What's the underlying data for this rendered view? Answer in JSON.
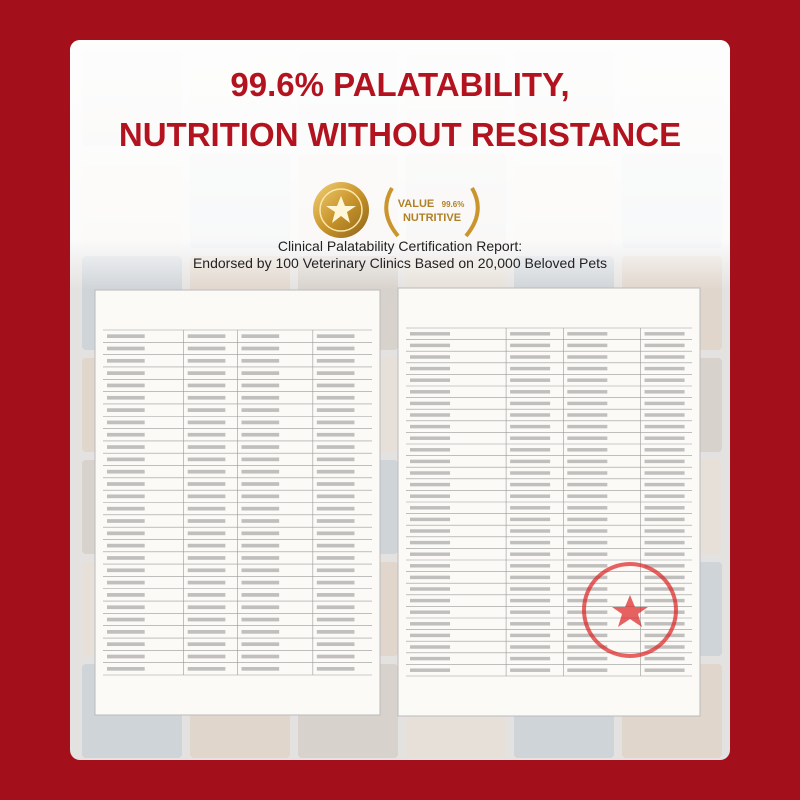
{
  "header": {
    "title_lines": [
      "99.6% PALATABILITY,",
      "NUTRITION WITHOUT RESISTANCE"
    ]
  },
  "badge": {
    "top": "VALUE",
    "value": "99.6%",
    "bottom": "NUTRITIVE"
  },
  "subtitle_lines": [
    "Clinical Palatability Certification Report:",
    "Endorsed by 100 Veterinary Clinics Based on 20,000 Beloved Pets"
  ]
}
